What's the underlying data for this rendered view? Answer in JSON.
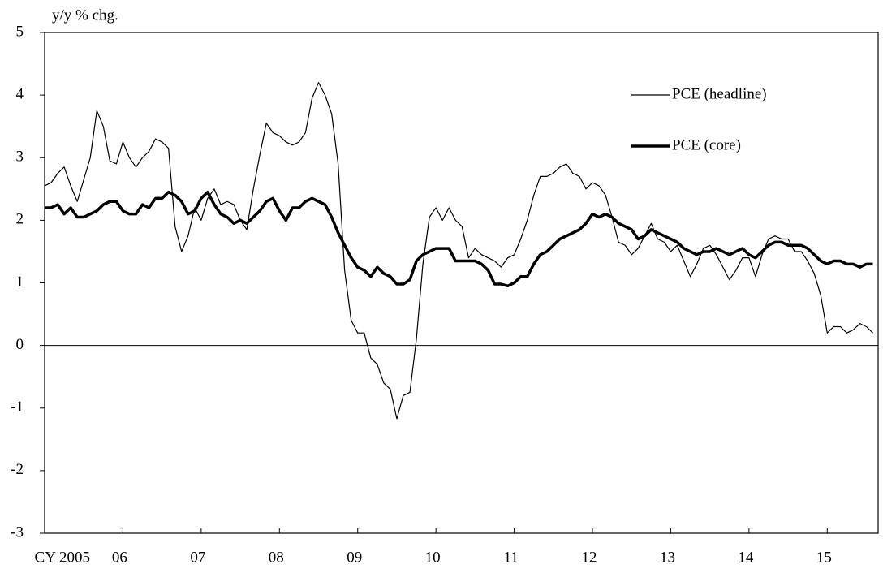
{
  "chart_data": {
    "type": "line",
    "y_label": "y/y % chg.",
    "ylim": [
      -3,
      5
    ],
    "yticks": [
      -3,
      -2,
      -1,
      0,
      1,
      2,
      3,
      4,
      5
    ],
    "xlim": [
      2005,
      2015.65
    ],
    "xticks": [
      {
        "value": 2005,
        "label": "CY 2005"
      },
      {
        "value": 2006,
        "label": "06"
      },
      {
        "value": 2007,
        "label": "07"
      },
      {
        "value": 2008,
        "label": "08"
      },
      {
        "value": 2009,
        "label": "09"
      },
      {
        "value": 2010,
        "label": "10"
      },
      {
        "value": 2011,
        "label": "11"
      },
      {
        "value": 2012,
        "label": "12"
      },
      {
        "value": 2013,
        "label": "13"
      },
      {
        "value": 2014,
        "label": "14"
      },
      {
        "value": 2015,
        "label": "15"
      }
    ],
    "zero_line": true,
    "legend_position": "upper-right",
    "x": [
      2005,
      2005.083,
      2005.167,
      2005.25,
      2005.333,
      2005.417,
      2005.5,
      2005.583,
      2005.667,
      2005.75,
      2005.833,
      2005.917,
      2006,
      2006.083,
      2006.167,
      2006.25,
      2006.333,
      2006.417,
      2006.5,
      2006.583,
      2006.667,
      2006.75,
      2006.833,
      2006.917,
      2007,
      2007.083,
      2007.167,
      2007.25,
      2007.333,
      2007.417,
      2007.5,
      2007.583,
      2007.667,
      2007.75,
      2007.833,
      2007.917,
      2008,
      2008.083,
      2008.167,
      2008.25,
      2008.333,
      2008.417,
      2008.5,
      2008.583,
      2008.667,
      2008.75,
      2008.833,
      2008.917,
      2009,
      2009.083,
      2009.167,
      2009.25,
      2009.333,
      2009.417,
      2009.5,
      2009.583,
      2009.667,
      2009.75,
      2009.833,
      2009.917,
      2010,
      2010.083,
      2010.167,
      2010.25,
      2010.333,
      2010.417,
      2010.5,
      2010.583,
      2010.667,
      2010.75,
      2010.833,
      2010.917,
      2011,
      2011.083,
      2011.167,
      2011.25,
      2011.333,
      2011.417,
      2011.5,
      2011.583,
      2011.667,
      2011.75,
      2011.833,
      2011.917,
      2012,
      2012.083,
      2012.167,
      2012.25,
      2012.333,
      2012.417,
      2012.5,
      2012.583,
      2012.667,
      2012.75,
      2012.833,
      2012.917,
      2013,
      2013.083,
      2013.167,
      2013.25,
      2013.333,
      2013.417,
      2013.5,
      2013.583,
      2013.667,
      2013.75,
      2013.833,
      2013.917,
      2014,
      2014.083,
      2014.167,
      2014.25,
      2014.333,
      2014.417,
      2014.5,
      2014.583,
      2014.667,
      2014.75,
      2014.833,
      2014.917,
      2015,
      2015.083,
      2015.167,
      2015.25,
      2015.333,
      2015.417,
      2015.5,
      2015.583
    ],
    "series": [
      {
        "name": "PCE (headline)",
        "color": "#000000",
        "line_width": 1.2,
        "values": [
          2.55,
          2.6,
          2.75,
          2.85,
          2.55,
          2.3,
          2.65,
          3.0,
          3.75,
          3.5,
          2.95,
          2.9,
          3.25,
          3.0,
          2.85,
          3.0,
          3.1,
          3.3,
          3.25,
          3.15,
          1.9,
          1.5,
          1.75,
          2.2,
          2.0,
          2.35,
          2.5,
          2.25,
          2.3,
          2.25,
          2.0,
          1.85,
          2.5,
          3.05,
          3.55,
          3.4,
          3.35,
          3.25,
          3.2,
          3.25,
          3.4,
          3.95,
          4.2,
          4.0,
          3.7,
          2.9,
          1.2,
          0.4,
          0.2,
          0.2,
          -0.2,
          -0.3,
          -0.6,
          -0.7,
          -1.17,
          -0.8,
          -0.75,
          0.1,
          1.3,
          2.05,
          2.2,
          2.0,
          2.2,
          2.0,
          1.9,
          1.4,
          1.55,
          1.45,
          1.4,
          1.35,
          1.25,
          1.4,
          1.45,
          1.7,
          2.0,
          2.4,
          2.7,
          2.7,
          2.75,
          2.85,
          2.9,
          2.75,
          2.7,
          2.5,
          2.6,
          2.55,
          2.4,
          2.05,
          1.65,
          1.6,
          1.45,
          1.55,
          1.75,
          1.95,
          1.7,
          1.65,
          1.5,
          1.6,
          1.35,
          1.1,
          1.3,
          1.55,
          1.6,
          1.45,
          1.25,
          1.05,
          1.2,
          1.4,
          1.4,
          1.1,
          1.45,
          1.7,
          1.75,
          1.7,
          1.7,
          1.5,
          1.5,
          1.35,
          1.15,
          0.8,
          0.2,
          0.3,
          0.3,
          0.2,
          0.25,
          0.35,
          0.3,
          0.2
        ]
      },
      {
        "name": "PCE (core)",
        "color": "#000000",
        "line_width": 3.5,
        "values": [
          2.2,
          2.2,
          2.25,
          2.1,
          2.2,
          2.05,
          2.05,
          2.1,
          2.15,
          2.25,
          2.3,
          2.3,
          2.15,
          2.1,
          2.1,
          2.25,
          2.2,
          2.35,
          2.35,
          2.45,
          2.4,
          2.3,
          2.1,
          2.15,
          2.35,
          2.45,
          2.25,
          2.1,
          2.05,
          1.95,
          2.0,
          1.95,
          2.05,
          2.15,
          2.3,
          2.35,
          2.15,
          2.0,
          2.2,
          2.2,
          2.3,
          2.35,
          2.3,
          2.25,
          2.05,
          1.8,
          1.6,
          1.4,
          1.25,
          1.2,
          1.1,
          1.25,
          1.15,
          1.1,
          0.98,
          0.98,
          1.05,
          1.35,
          1.45,
          1.5,
          1.55,
          1.55,
          1.55,
          1.35,
          1.35,
          1.35,
          1.35,
          1.3,
          1.2,
          0.98,
          0.98,
          0.95,
          1.0,
          1.1,
          1.1,
          1.3,
          1.45,
          1.5,
          1.6,
          1.7,
          1.75,
          1.8,
          1.85,
          1.95,
          2.1,
          2.05,
          2.1,
          2.05,
          1.95,
          1.9,
          1.85,
          1.7,
          1.75,
          1.85,
          1.8,
          1.75,
          1.7,
          1.65,
          1.55,
          1.5,
          1.45,
          1.5,
          1.5,
          1.55,
          1.5,
          1.45,
          1.5,
          1.55,
          1.45,
          1.4,
          1.5,
          1.6,
          1.65,
          1.65,
          1.6,
          1.6,
          1.6,
          1.55,
          1.45,
          1.35,
          1.3,
          1.35,
          1.35,
          1.3,
          1.3,
          1.25,
          1.3,
          1.3
        ]
      }
    ]
  }
}
